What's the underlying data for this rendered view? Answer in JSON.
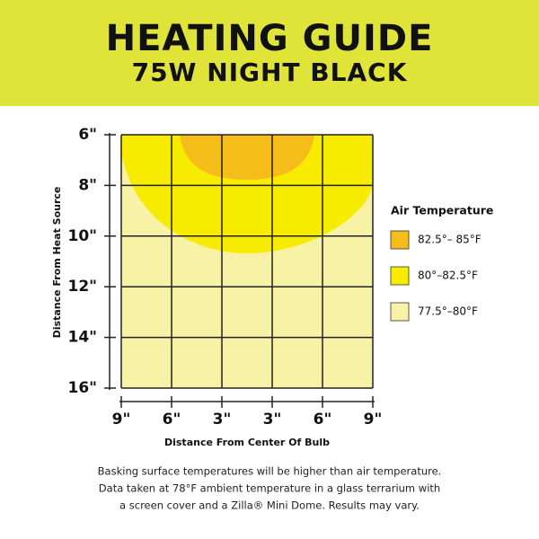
{
  "header": {
    "title": "HEATING GUIDE",
    "subtitle": "75W NIGHT BLACK"
  },
  "y_axis": {
    "title": "Distance From Heat Source",
    "labels": [
      "6\"",
      "8\"",
      "10\"",
      "12\"",
      "14\"",
      "16\""
    ]
  },
  "x_axis": {
    "title": "Distance From Center Of Bulb",
    "labels": [
      "9\"",
      "6\"",
      "3\"",
      "3\"",
      "6\"",
      "9\""
    ]
  },
  "legend": {
    "title": "Air Temperature",
    "items": [
      {
        "label": "82.5°– 85°F",
        "color": "#f5bc1a"
      },
      {
        "label": "80°–82.5°F",
        "color": "#f7ec00"
      },
      {
        "label": "77.5°–80°F",
        "color": "#f7f2a6"
      }
    ]
  },
  "footnote": [
    "Basking surface temperatures will be higher than air temperature.",
    "Data taken at 78°F ambient temperature in a glass terrarium with",
    "a screen cover and a Zilla® Mini Dome. Results may vary."
  ]
}
